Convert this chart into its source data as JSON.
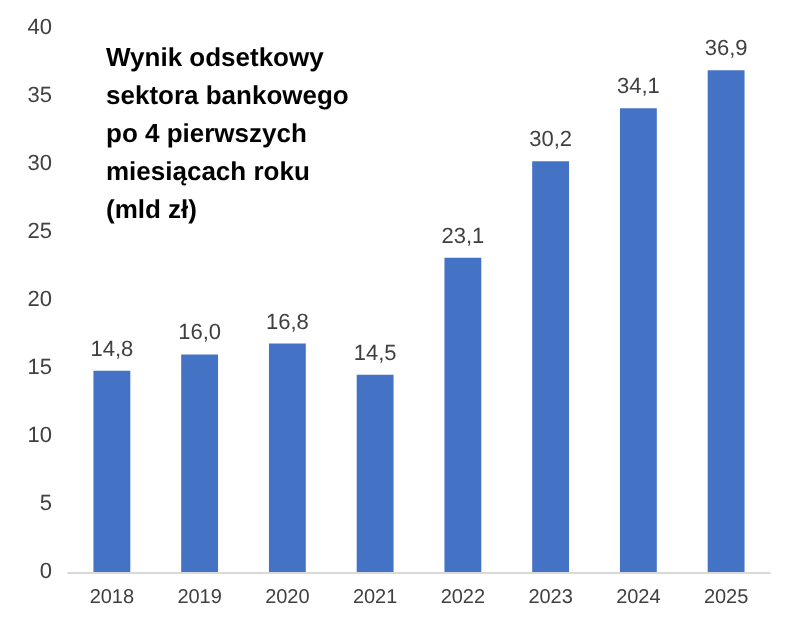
{
  "chart_data": {
    "type": "bar",
    "title": "Wynik odsetkowy\nsektora bankowego\npo 4 pierwszych\nmiesiącach roku\n(mld zł)",
    "categories": [
      "2018",
      "2019",
      "2020",
      "2021",
      "2022",
      "2023",
      "2024",
      "2025"
    ],
    "values": [
      14.8,
      16.0,
      16.8,
      14.5,
      23.1,
      30.2,
      34.1,
      36.9
    ],
    "value_labels": [
      "14,8",
      "16,0",
      "16,8",
      "14,5",
      "23,1",
      "30,2",
      "34,1",
      "36,9"
    ],
    "color": "#4472c4",
    "ylim": [
      0,
      40
    ],
    "yticks": [
      0,
      5,
      10,
      15,
      20,
      25,
      30,
      35,
      40
    ],
    "grid": false
  }
}
